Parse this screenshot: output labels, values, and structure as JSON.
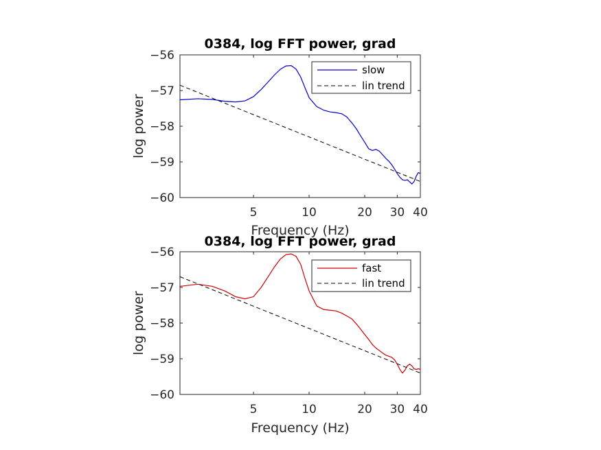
{
  "chart_data": [
    {
      "type": "line",
      "title": "0384, log FFT power, grad",
      "xlabel": "Frequency (Hz)",
      "ylabel": "log power",
      "xscale": "log",
      "xlim": [
        2,
        40
      ],
      "ylim": [
        -60,
        -56
      ],
      "xticks": [
        5,
        10,
        20,
        30,
        40
      ],
      "xtick_labels": [
        "5",
        "10",
        "20",
        "30",
        "40"
      ],
      "yticks": [
        -60,
        -59,
        -58,
        -57,
        -56
      ],
      "ytick_labels": [
        "−60",
        "−59",
        "−58",
        "−57",
        "−56"
      ],
      "legend_position": "top-right",
      "series": [
        {
          "name": "slow",
          "style": "solid",
          "color": "#0000cc",
          "x": [
            2,
            2.5,
            3,
            3.5,
            4,
            4.5,
            5,
            5.5,
            6,
            6.5,
            7,
            7.5,
            8,
            8.5,
            9,
            9.5,
            10,
            11,
            12,
            13,
            14,
            15,
            16,
            17,
            18,
            19,
            20,
            21,
            22,
            23,
            24,
            25,
            26,
            27,
            28,
            29,
            30,
            31,
            32,
            33,
            34,
            35,
            36,
            37,
            38,
            39,
            40
          ],
          "y": [
            -57.26,
            -57.23,
            -57.25,
            -57.3,
            -57.32,
            -57.29,
            -57.17,
            -56.97,
            -56.76,
            -56.56,
            -56.4,
            -56.31,
            -56.3,
            -56.4,
            -56.62,
            -56.92,
            -57.2,
            -57.45,
            -57.55,
            -57.6,
            -57.62,
            -57.65,
            -57.74,
            -57.9,
            -58.07,
            -58.27,
            -58.45,
            -58.63,
            -58.68,
            -58.65,
            -58.7,
            -58.8,
            -58.9,
            -58.98,
            -59.08,
            -59.2,
            -59.33,
            -59.43,
            -59.5,
            -59.52,
            -59.5,
            -59.56,
            -59.62,
            -59.55,
            -59.4,
            -59.3,
            -59.32
          ]
        },
        {
          "name": "lin trend",
          "style": "dashed",
          "color": "#000000",
          "x": [
            2,
            40
          ],
          "y": [
            -56.85,
            -59.55
          ]
        }
      ]
    },
    {
      "type": "line",
      "title": "0384, log FFT power, grad",
      "xlabel": "Frequency (Hz)",
      "ylabel": "log power",
      "xscale": "log",
      "xlim": [
        2,
        40
      ],
      "ylim": [
        -60,
        -56
      ],
      "xticks": [
        5,
        10,
        20,
        30,
        40
      ],
      "xtick_labels": [
        "5",
        "10",
        "20",
        "30",
        "40"
      ],
      "yticks": [
        -60,
        -59,
        -58,
        -57,
        -56
      ],
      "ytick_labels": [
        "−60",
        "−59",
        "−58",
        "−57",
        "−56"
      ],
      "legend_position": "top-right",
      "series": [
        {
          "name": "fast",
          "style": "solid",
          "color": "#cc0000",
          "x": [
            2,
            2.5,
            3,
            3.5,
            4,
            4.5,
            5,
            5.5,
            6,
            6.5,
            7,
            7.5,
            8,
            8.5,
            9,
            9.5,
            10,
            11,
            12,
            13,
            14,
            15,
            16,
            17,
            18,
            19,
            20,
            21,
            22,
            23,
            24,
            25,
            26,
            27,
            28,
            29,
            30,
            31,
            32,
            33,
            34,
            35,
            36,
            37,
            38,
            39,
            40
          ],
          "y": [
            -56.97,
            -56.91,
            -56.97,
            -57.1,
            -57.26,
            -57.32,
            -57.26,
            -57.0,
            -56.7,
            -56.42,
            -56.2,
            -56.08,
            -56.06,
            -56.13,
            -56.35,
            -56.75,
            -57.1,
            -57.52,
            -57.62,
            -57.64,
            -57.66,
            -57.72,
            -57.8,
            -57.88,
            -58.02,
            -58.17,
            -58.32,
            -58.46,
            -58.6,
            -58.7,
            -58.77,
            -58.84,
            -58.9,
            -58.93,
            -58.96,
            -59.03,
            -59.15,
            -59.3,
            -59.4,
            -59.32,
            -59.2,
            -59.15,
            -59.2,
            -59.28,
            -59.3,
            -59.28,
            -59.3
          ]
        },
        {
          "name": "lin trend",
          "style": "dashed",
          "color": "#000000",
          "x": [
            2,
            40
          ],
          "y": [
            -56.7,
            -59.4
          ]
        }
      ]
    }
  ]
}
